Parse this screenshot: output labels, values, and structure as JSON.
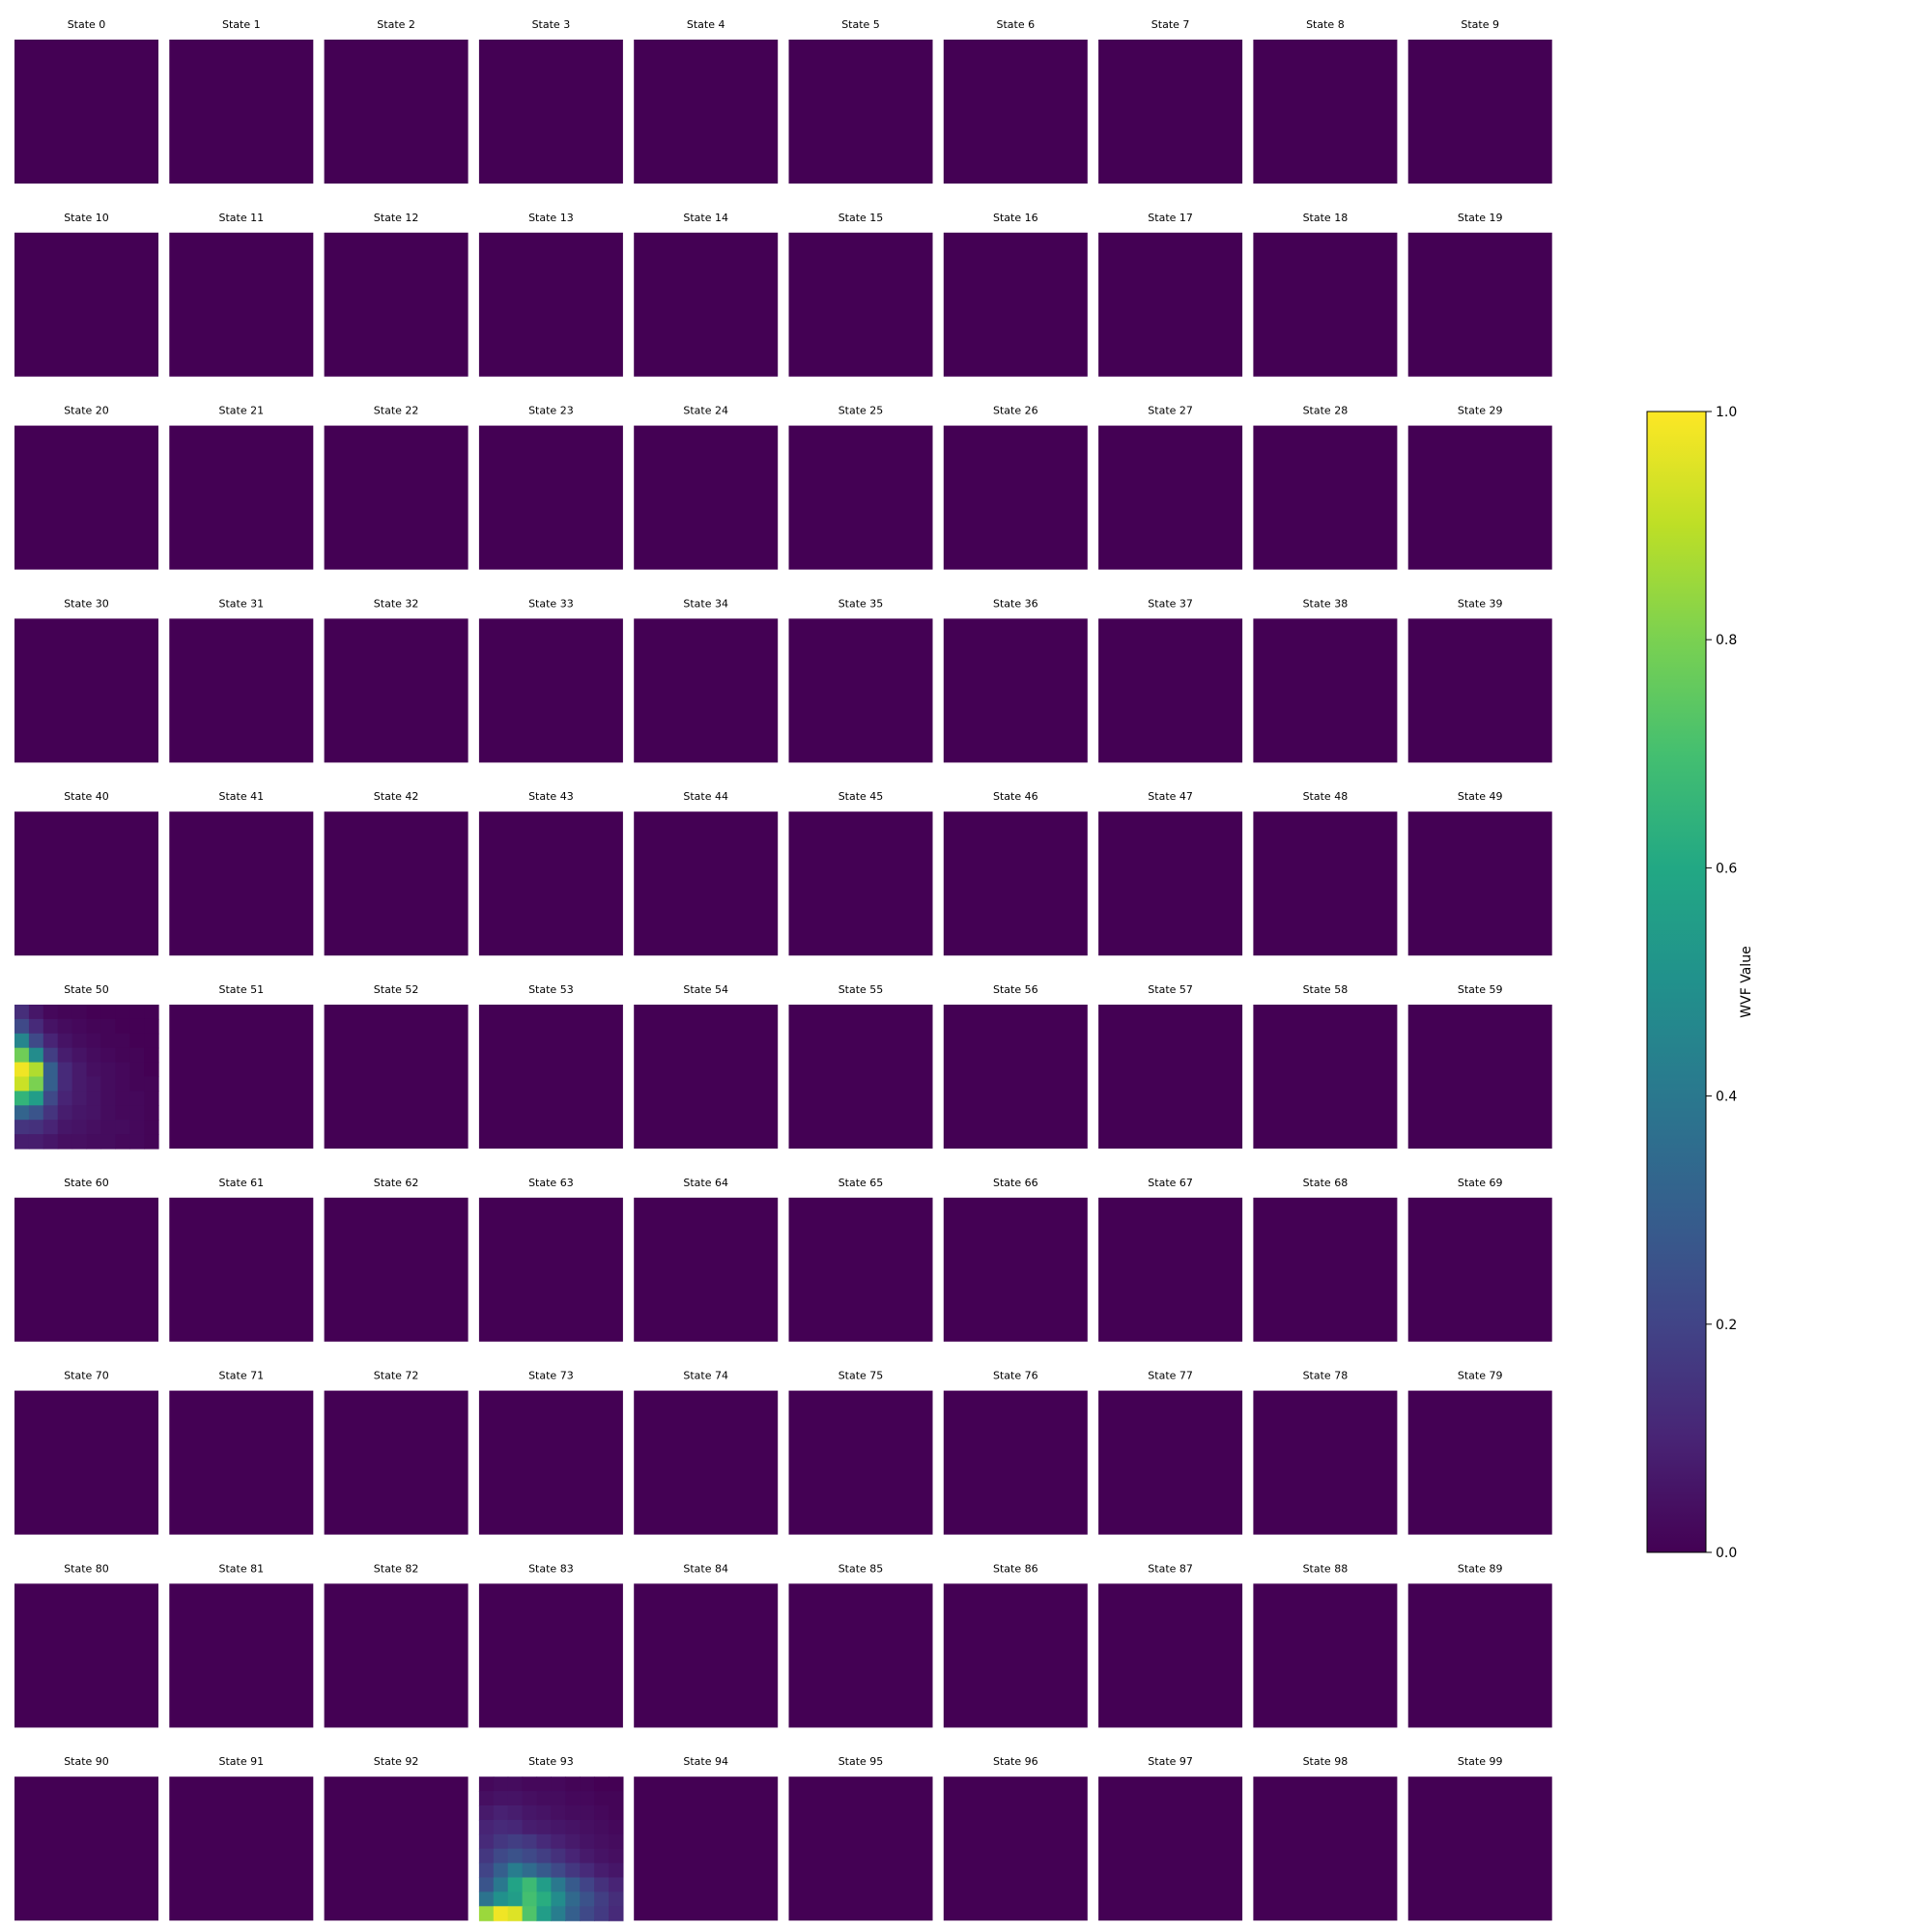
{
  "chart_data": {
    "type": "heatmap",
    "layout_grid": {
      "rows": 10,
      "cols": 10
    },
    "panel_title_prefix": "State",
    "panel_titles": [
      "State 0",
      "State 1",
      "State 2",
      "State 3",
      "State 4",
      "State 5",
      "State 6",
      "State 7",
      "State 8",
      "State 9",
      "State 10",
      "State 11",
      "State 12",
      "State 13",
      "State 14",
      "State 15",
      "State 16",
      "State 17",
      "State 18",
      "State 19",
      "State 20",
      "State 21",
      "State 22",
      "State 23",
      "State 24",
      "State 25",
      "State 26",
      "State 27",
      "State 28",
      "State 29",
      "State 30",
      "State 31",
      "State 32",
      "State 33",
      "State 34",
      "State 35",
      "State 36",
      "State 37",
      "State 38",
      "State 39",
      "State 40",
      "State 41",
      "State 42",
      "State 43",
      "State 44",
      "State 45",
      "State 46",
      "State 47",
      "State 48",
      "State 49",
      "State 50",
      "State 51",
      "State 52",
      "State 53",
      "State 54",
      "State 55",
      "State 56",
      "State 57",
      "State 58",
      "State 59",
      "State 60",
      "State 61",
      "State 62",
      "State 63",
      "State 64",
      "State 65",
      "State 66",
      "State 67",
      "State 68",
      "State 69",
      "State 70",
      "State 71",
      "State 72",
      "State 73",
      "State 74",
      "State 75",
      "State 76",
      "State 77",
      "State 78",
      "State 79",
      "State 80",
      "State 81",
      "State 82",
      "State 83",
      "State 84",
      "State 85",
      "State 86",
      "State 87",
      "State 88",
      "State 89",
      "State 90",
      "State 91",
      "State 92",
      "State 93",
      "State 94",
      "State 95",
      "State 96",
      "State 97",
      "State 98",
      "State 99"
    ],
    "default_panel_value": 0.0,
    "nonzero_panels": [
      {
        "state": 50,
        "values": [
          [
            0.13,
            0.06,
            0.02,
            0.01,
            0.01,
            0.0,
            0.0,
            0.0,
            0.0,
            0.0
          ],
          [
            0.22,
            0.12,
            0.05,
            0.03,
            0.02,
            0.01,
            0.01,
            0.0,
            0.0,
            0.0
          ],
          [
            0.45,
            0.22,
            0.1,
            0.05,
            0.03,
            0.02,
            0.01,
            0.01,
            0.0,
            0.0
          ],
          [
            0.78,
            0.48,
            0.18,
            0.08,
            0.05,
            0.03,
            0.02,
            0.01,
            0.01,
            0.0
          ],
          [
            0.98,
            0.88,
            0.3,
            0.12,
            0.07,
            0.04,
            0.03,
            0.02,
            0.01,
            0.0
          ],
          [
            0.92,
            0.8,
            0.3,
            0.12,
            0.07,
            0.05,
            0.03,
            0.02,
            0.01,
            0.01
          ],
          [
            0.65,
            0.55,
            0.22,
            0.1,
            0.07,
            0.05,
            0.03,
            0.02,
            0.02,
            0.01
          ],
          [
            0.32,
            0.26,
            0.15,
            0.08,
            0.06,
            0.05,
            0.03,
            0.02,
            0.02,
            0.01
          ],
          [
            0.15,
            0.14,
            0.1,
            0.06,
            0.05,
            0.04,
            0.03,
            0.03,
            0.02,
            0.01
          ],
          [
            0.08,
            0.08,
            0.06,
            0.04,
            0.04,
            0.03,
            0.03,
            0.02,
            0.02,
            0.01
          ]
        ]
      },
      {
        "state": 93,
        "values": [
          [
            0.02,
            0.03,
            0.03,
            0.02,
            0.02,
            0.02,
            0.01,
            0.01,
            0.0,
            0.0
          ],
          [
            0.04,
            0.05,
            0.05,
            0.04,
            0.03,
            0.03,
            0.02,
            0.02,
            0.01,
            0.01
          ],
          [
            0.07,
            0.09,
            0.08,
            0.06,
            0.05,
            0.04,
            0.03,
            0.03,
            0.02,
            0.01
          ],
          [
            0.1,
            0.12,
            0.11,
            0.08,
            0.07,
            0.06,
            0.05,
            0.04,
            0.03,
            0.02
          ],
          [
            0.12,
            0.16,
            0.18,
            0.16,
            0.12,
            0.09,
            0.07,
            0.05,
            0.04,
            0.03
          ],
          [
            0.16,
            0.22,
            0.25,
            0.22,
            0.18,
            0.14,
            0.1,
            0.07,
            0.05,
            0.04
          ],
          [
            0.2,
            0.3,
            0.42,
            0.35,
            0.28,
            0.22,
            0.16,
            0.12,
            0.08,
            0.06
          ],
          [
            0.26,
            0.4,
            0.58,
            0.68,
            0.55,
            0.4,
            0.28,
            0.2,
            0.14,
            0.1
          ],
          [
            0.38,
            0.5,
            0.55,
            0.7,
            0.62,
            0.48,
            0.34,
            0.25,
            0.18,
            0.13
          ],
          [
            0.85,
            0.98,
            0.95,
            0.72,
            0.55,
            0.42,
            0.3,
            0.22,
            0.17,
            0.12
          ]
        ]
      }
    ],
    "colormap": "viridis",
    "colorbar": {
      "label": "WVF Value",
      "range": [
        0.0,
        1.0
      ],
      "ticks": [
        0.0,
        0.2,
        0.4,
        0.6,
        0.8,
        1.0
      ],
      "tick_labels": [
        "0.0",
        "0.2",
        "0.4",
        "0.6",
        "0.8",
        "1.0"
      ]
    },
    "axes_visible": false
  }
}
